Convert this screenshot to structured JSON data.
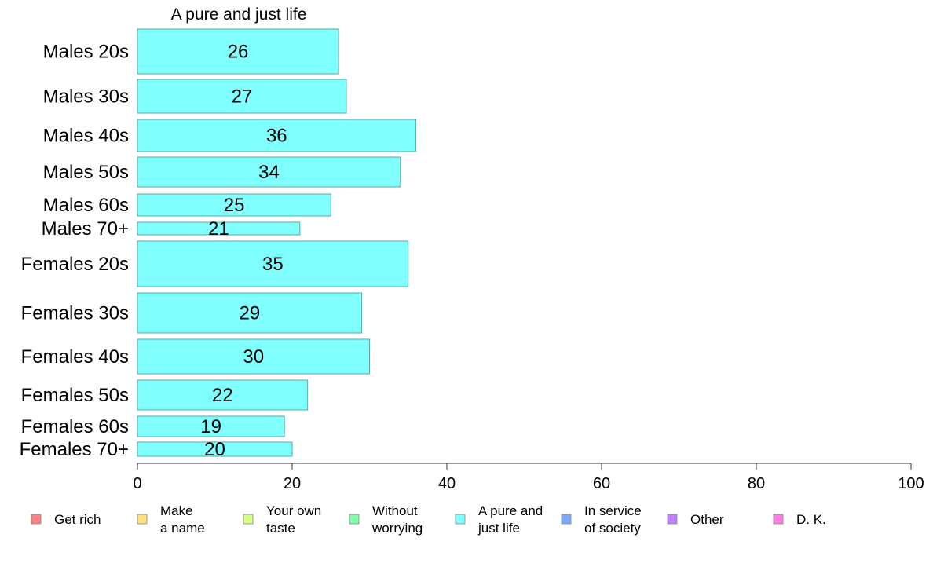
{
  "chart_data": {
    "type": "bar",
    "orientation": "horizontal",
    "title": "A pure and just life",
    "xlim": [
      0,
      100
    ],
    "xticks": [
      "0",
      "20",
      "40",
      "60",
      "80",
      "100"
    ],
    "categories": [
      "Males 20s",
      "Males 30s",
      "Males 40s",
      "Males 50s",
      "Males 60s",
      "Males 70+",
      "Females 20s",
      "Females 30s",
      "Females 40s",
      "Females 50s",
      "Females 60s",
      "Females 70+"
    ],
    "values": [
      26,
      27,
      36,
      34,
      25,
      21,
      35,
      29,
      30,
      22,
      19,
      20
    ],
    "value_labels": [
      "26",
      "27",
      "36",
      "34",
      "25",
      "21",
      "35",
      "29",
      "30",
      "22",
      "19",
      "20"
    ],
    "bar_color": "#80ffff",
    "bar_stroke": "#5aa8a8",
    "legend_position": "bottom",
    "legend": [
      {
        "lines": [
          "Get rich"
        ],
        "color": "#ff8080"
      },
      {
        "lines": [
          "Make",
          "a name"
        ],
        "color": "#ffe080"
      },
      {
        "lines": [
          "Your own",
          "taste"
        ],
        "color": "#d5ff80"
      },
      {
        "lines": [
          "Without",
          "worrying"
        ],
        "color": "#80ffa8"
      },
      {
        "lines": [
          "A pure and",
          "just life"
        ],
        "color": "#80ffff"
      },
      {
        "lines": [
          "In service",
          "of society"
        ],
        "color": "#80a8ff"
      },
      {
        "lines": [
          "Other"
        ],
        "color": "#c080ff"
      },
      {
        "lines": [
          "D. K."
        ],
        "color": "#ff80e0"
      }
    ],
    "grid": false
  }
}
